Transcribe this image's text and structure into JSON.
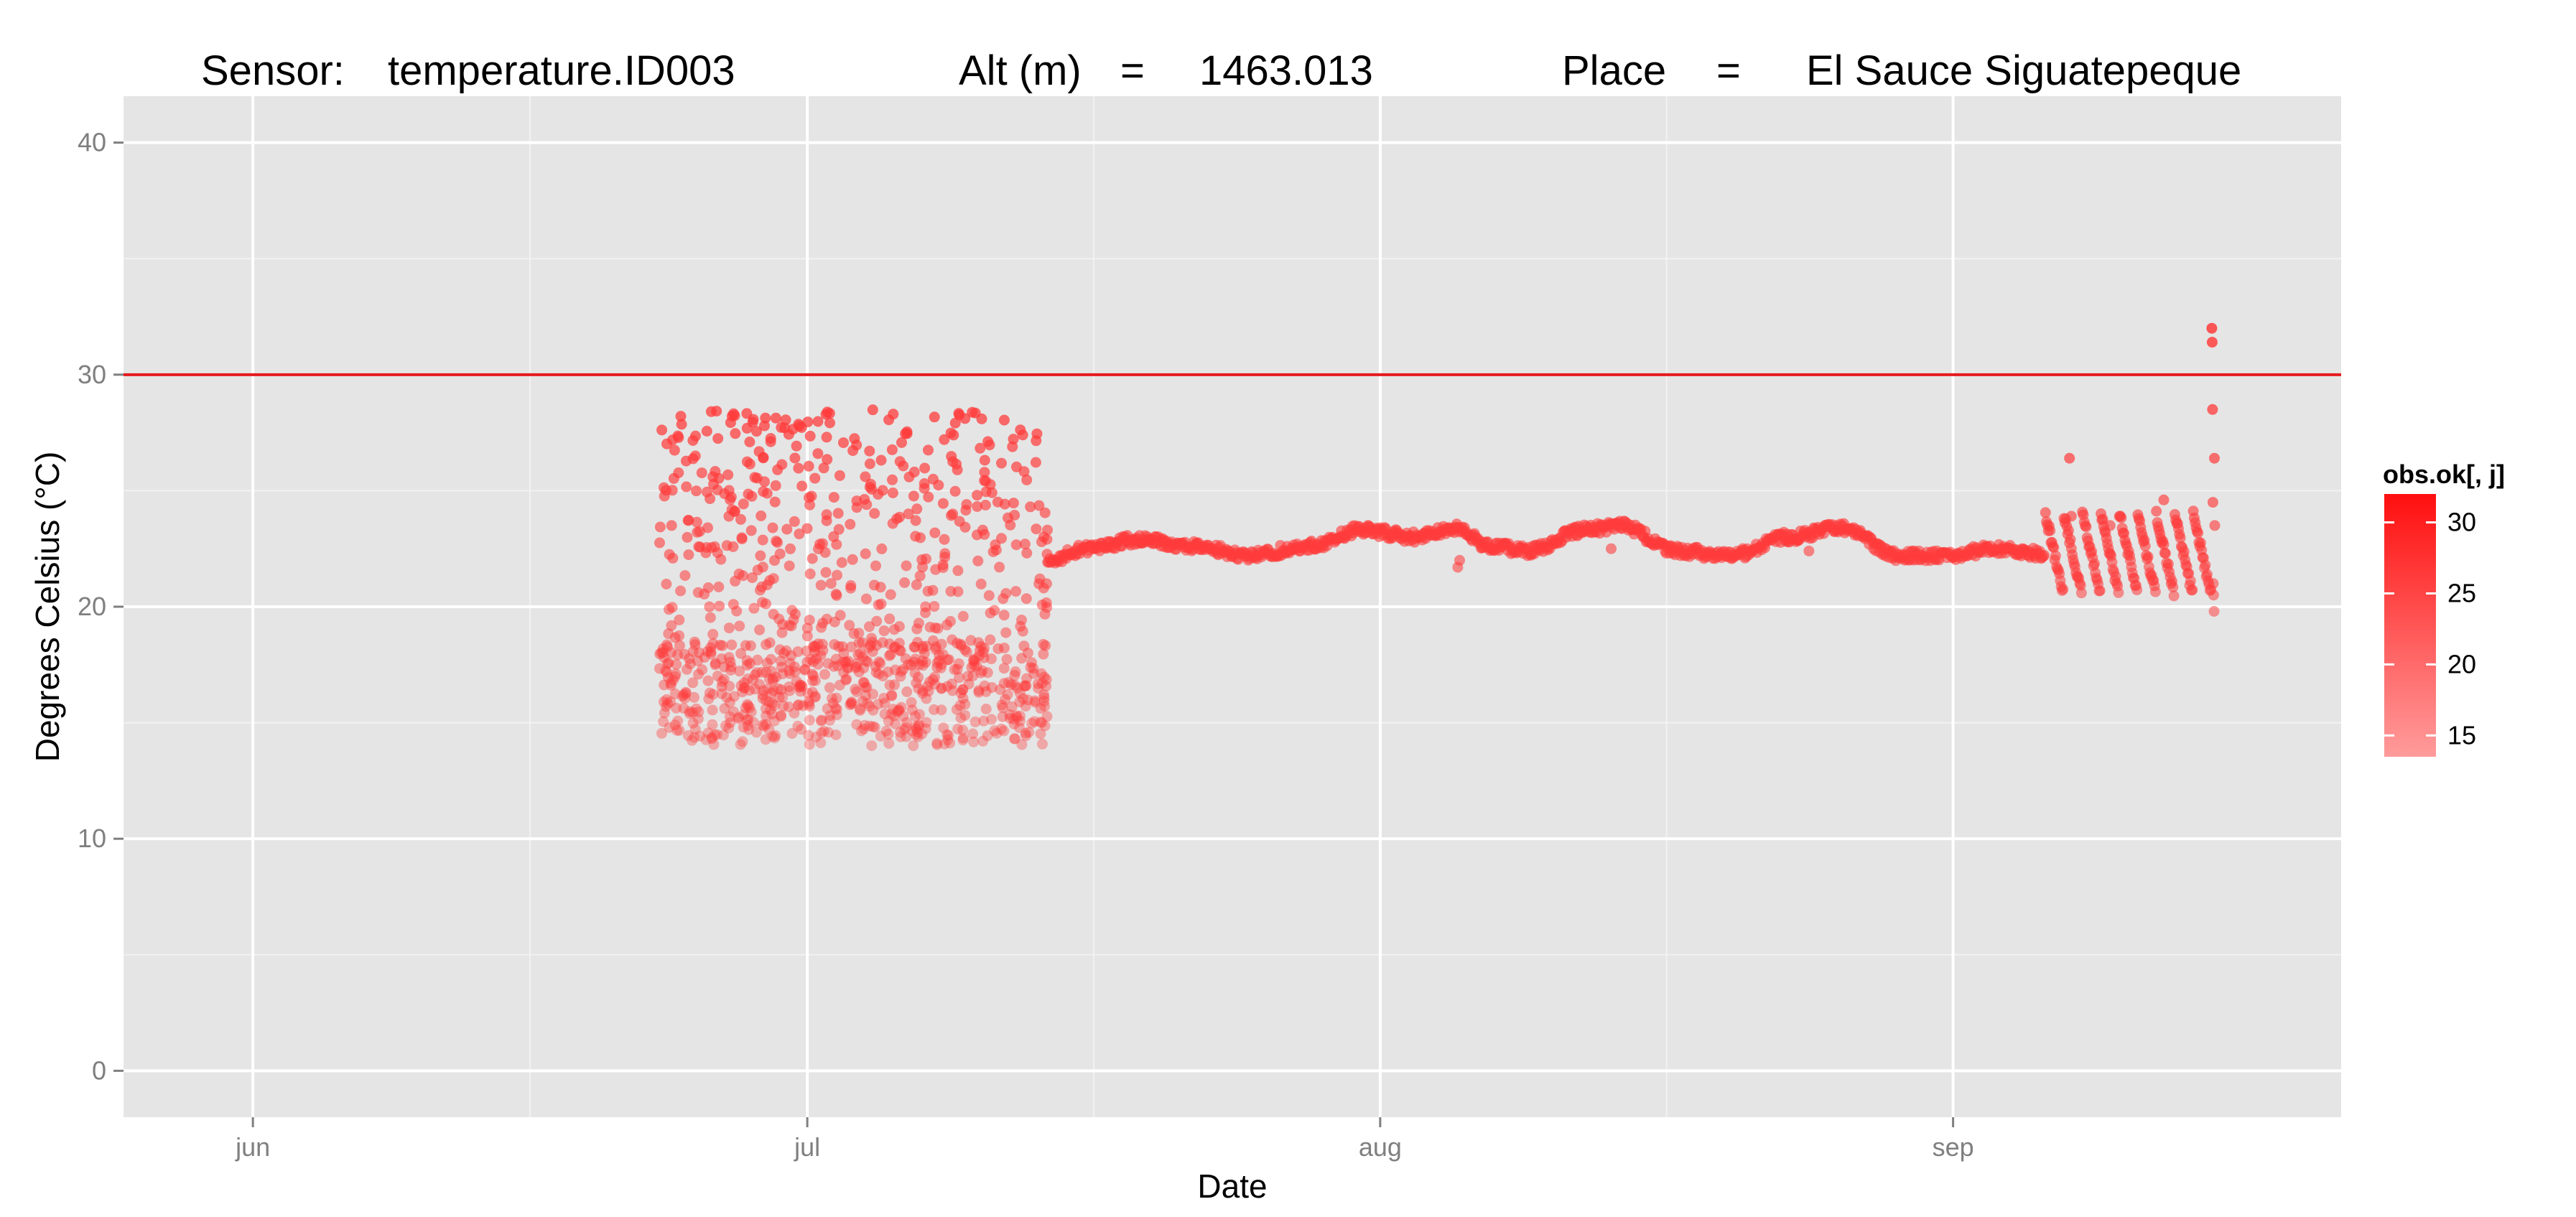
{
  "title": {
    "sensor_label": "Sensor:",
    "sensor_value": "temperature.ID003",
    "alt_label": "Alt (m)",
    "alt_eq": "=",
    "alt_value": "1463.013",
    "place_label": "Place",
    "place_eq": "=",
    "place_value": "El Sauce Siguatepeque"
  },
  "chart_data": {
    "type": "scatter",
    "xlabel": "Date",
    "ylabel": "Degrees Celsius (°C)",
    "x_ticks": [
      {
        "label": "jun",
        "date": "06-01"
      },
      {
        "label": "jul",
        "date": "07-01"
      },
      {
        "label": "aug",
        "date": "08-01"
      },
      {
        "label": "sep",
        "date": "09-01"
      }
    ],
    "xlim": [
      "05-25",
      "09-22"
    ],
    "y_ticks": [
      0,
      10,
      20,
      30,
      40
    ],
    "ylim": [
      -2,
      42
    ],
    "grid": true,
    "reference_line": {
      "y": 30,
      "color": "#e41a1c"
    },
    "legend": {
      "title": "obs.ok[, j]",
      "position": "right",
      "ticks": [
        15,
        20,
        25,
        30
      ],
      "range": [
        13.5,
        32
      ],
      "color_low": "#ff9b9b",
      "color_high": "#ff0f0f"
    },
    "phases": [
      {
        "name_hidden": "scattered",
        "start": "06-23",
        "end": "07-14",
        "low_band": [
          14,
          18.5
        ],
        "high_band": [
          16,
          28.5
        ],
        "points_per_day": 48
      },
      {
        "name_hidden": "smooth",
        "start": "07-14",
        "end": "09-06",
        "anchors": [
          [
            "07-14",
            21.9
          ],
          [
            "07-16",
            22.5
          ],
          [
            "07-19",
            22.9
          ],
          [
            "07-22",
            22.6
          ],
          [
            "07-25",
            22.2
          ],
          [
            "07-28",
            22.6
          ],
          [
            "07-31",
            23.3
          ],
          [
            "08-03",
            23.0
          ],
          [
            "08-05",
            23.4
          ],
          [
            "08-07",
            22.6
          ],
          [
            "08-09",
            22.4
          ],
          [
            "08-12",
            23.3
          ],
          [
            "08-14",
            23.5
          ],
          [
            "08-17",
            22.4
          ],
          [
            "08-20",
            22.2
          ],
          [
            "08-23",
            23.0
          ],
          [
            "08-26",
            23.4
          ],
          [
            "08-29",
            22.2
          ],
          [
            "09-01",
            22.2
          ],
          [
            "09-03",
            22.5
          ],
          [
            "09-06",
            22.3
          ]
        ]
      },
      {
        "name_hidden": "oscillating",
        "start": "09-06",
        "end": "09-15",
        "center": 22.2,
        "amplitude": 1.8
      },
      {
        "name_hidden": "tail",
        "start": "09-15",
        "end": "09-16",
        "values": [
          32.0,
          31.4,
          28.5,
          24.5,
          21.0,
          20.5,
          19.8,
          26.4,
          23.5
        ]
      }
    ]
  },
  "colors": {
    "panel_bg": "#e5e5e5",
    "grid_major": "#ffffff",
    "grid_minor": "#f2f2f2",
    "point_base": "#ff3b3b"
  }
}
